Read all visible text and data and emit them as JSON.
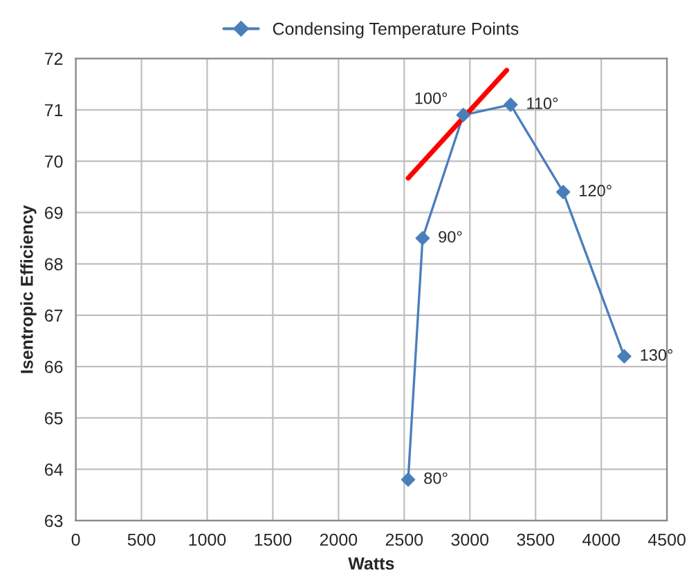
{
  "chart_data": {
    "type": "line",
    "annotations": [
      {
        "text": "80°",
        "x": 2530,
        "y": 63.8
      },
      {
        "text": "90°",
        "x": 2640,
        "y": 68.5
      },
      {
        "text": "100°",
        "x": 2950,
        "y": 70.9
      },
      {
        "text": "110°",
        "x": 3310,
        "y": 71.1
      },
      {
        "text": "120°",
        "x": 3710,
        "y": 69.4
      },
      {
        "text": "130°",
        "x": 4175,
        "y": 66.2
      }
    ],
    "xlabel": "Watts",
    "ylabel": "Isentropic Efficiency",
    "xlim": [
      0,
      4500
    ],
    "xticks": [
      0,
      500,
      1000,
      1500,
      2000,
      2500,
      3000,
      3500,
      4000,
      4500
    ],
    "ylim": [
      63,
      72
    ],
    "yticks": [
      63,
      64,
      65,
      66,
      67,
      68,
      69,
      70,
      71,
      72
    ],
    "grid": true,
    "legend": "top",
    "series": [
      {
        "name": "Condensing Temperature Points",
        "color": "#4a7ebb",
        "marker": "diamond",
        "line_style": "solid",
        "x": [
          2530,
          2640,
          2950,
          3310,
          3710,
          4175
        ],
        "values": [
          63.8,
          68.5,
          70.9,
          71.1,
          69.4,
          66.2
        ]
      },
      {
        "color": "#ff0000",
        "marker": "none",
        "line_style": "solid",
        "x": [
          2530,
          3280
        ],
        "values": [
          69.67,
          71.77
        ]
      }
    ]
  }
}
